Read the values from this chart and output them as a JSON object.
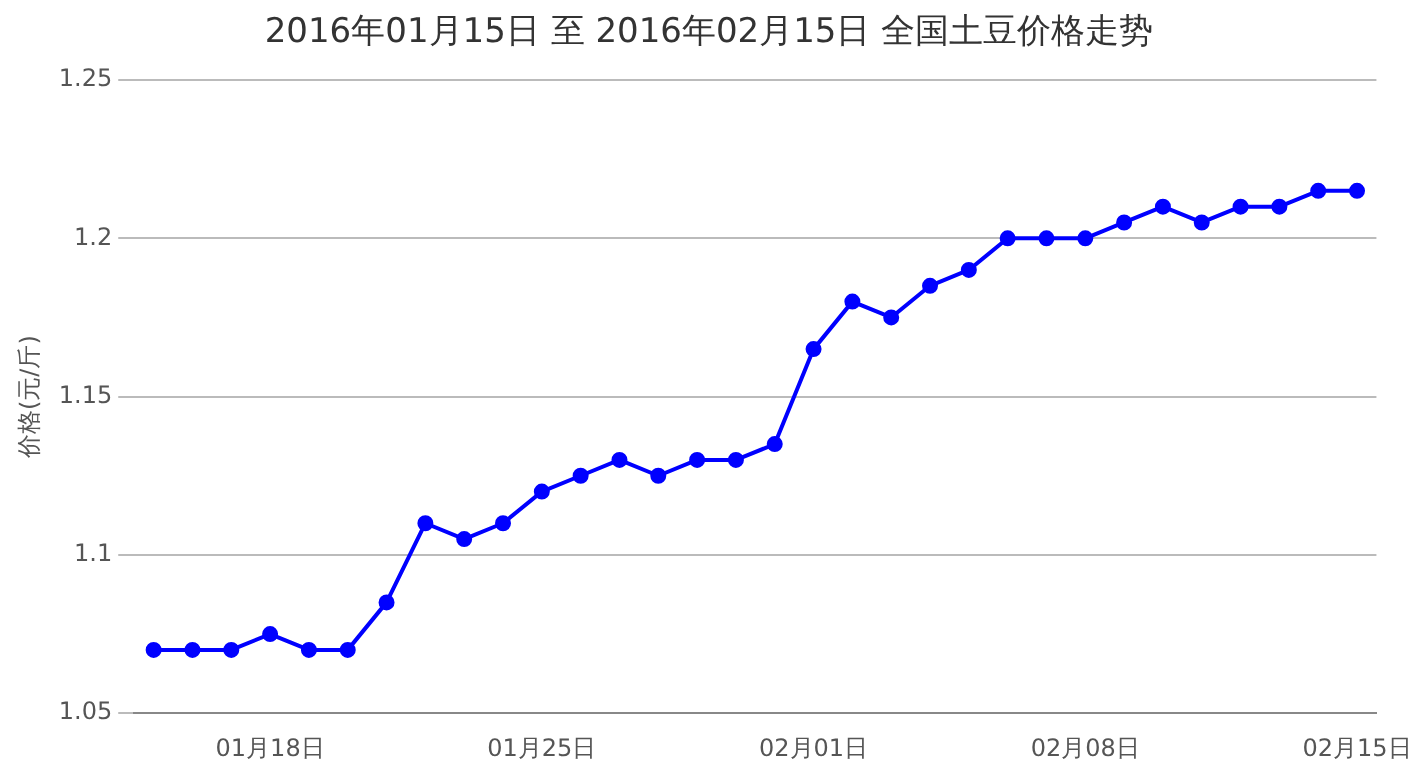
{
  "chart_data": {
    "type": "line",
    "title": "2016年01月15日 至 2016年02月15日 全国土豆价格走势",
    "ylabel": "价格(元/斤)",
    "categories": [
      null,
      null,
      null,
      "01月18日",
      null,
      null,
      null,
      null,
      null,
      null,
      "01月25日",
      null,
      null,
      null,
      null,
      null,
      null,
      "02月01日",
      null,
      null,
      null,
      null,
      null,
      null,
      "02月08日",
      null,
      null,
      null,
      null,
      null,
      null,
      "02月15日"
    ],
    "series": [
      {
        "color": "#0000ff",
        "values": [
          1.07,
          1.07,
          1.07,
          1.075,
          1.07,
          1.07,
          1.085,
          1.11,
          1.105,
          1.11,
          1.12,
          1.125,
          1.13,
          1.125,
          1.13,
          1.13,
          1.135,
          1.165,
          1.18,
          1.175,
          1.185,
          1.19,
          1.2,
          1.2,
          1.2,
          1.205,
          1.21,
          1.205,
          1.21,
          1.21,
          1.215,
          1.215
        ]
      }
    ],
    "ylim": [
      1.05,
      1.25
    ],
    "yticks": [
      1.05,
      1.1,
      1.15,
      1.2,
      1.25
    ],
    "grid": "y",
    "legend": false,
    "marker": "circle",
    "line_style": "solid"
  }
}
